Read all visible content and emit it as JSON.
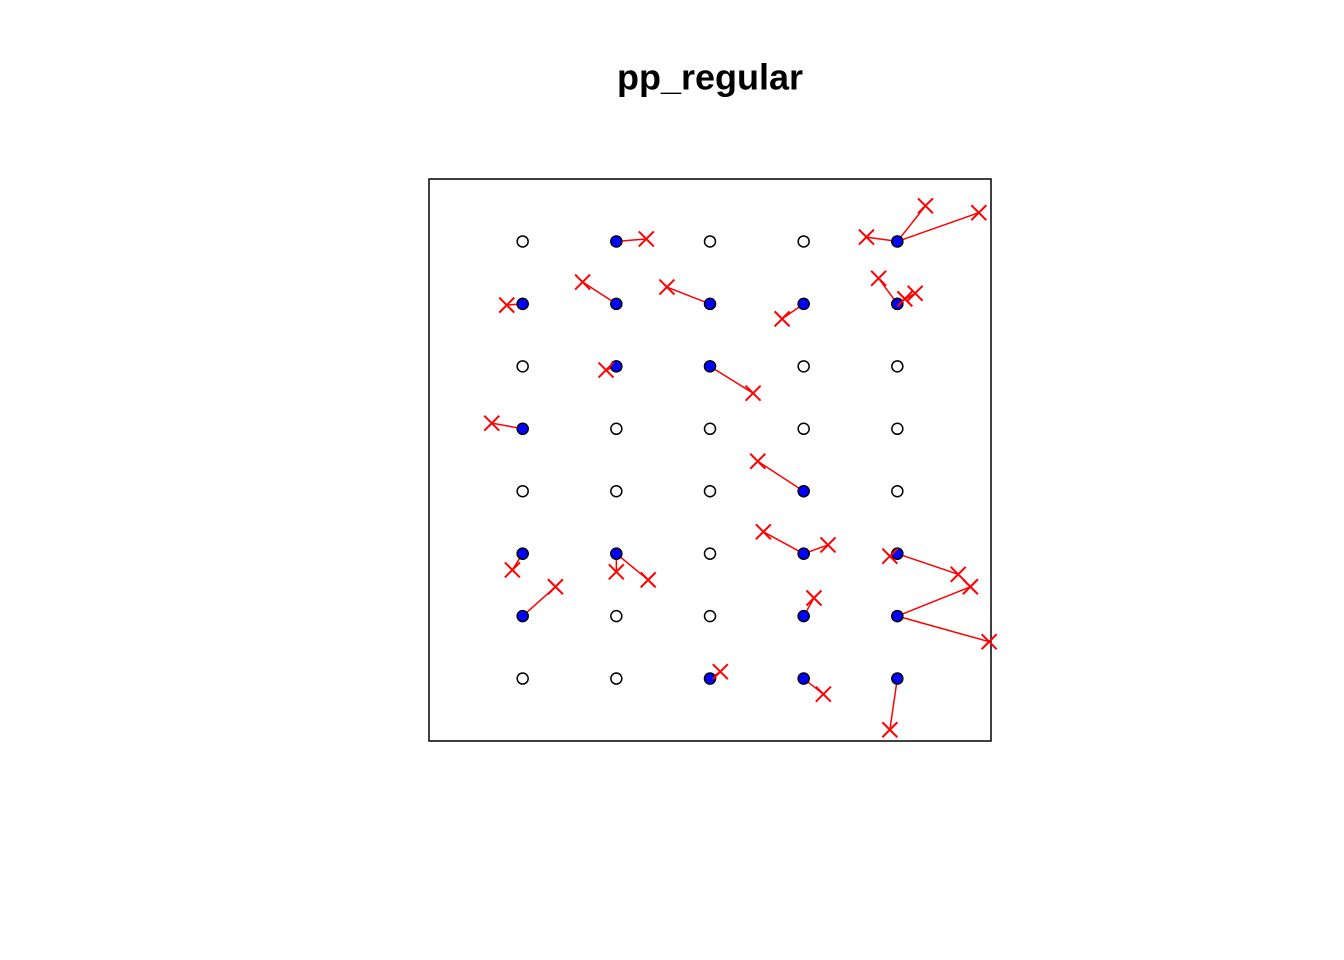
{
  "chart_data": {
    "type": "displacement",
    "title": "pp_regular",
    "xlim": [
      0,
      6
    ],
    "ylim": [
      0,
      9
    ],
    "point_color": "#000000",
    "fill_color": "#0000ff",
    "shift_color": "#ff0000",
    "x": [
      1,
      2,
      3,
      4,
      5,
      1,
      2,
      3,
      4,
      5,
      1,
      2,
      3,
      4,
      5,
      1,
      2,
      3,
      4,
      5,
      1,
      2,
      3,
      4,
      5,
      1,
      2,
      3,
      4,
      5,
      1,
      2,
      3,
      4,
      5,
      1,
      2,
      3,
      4,
      5
    ],
    "y": [
      8,
      8,
      8,
      8,
      8,
      7,
      7,
      7,
      7,
      7,
      6,
      6,
      6,
      6,
      6,
      5,
      5,
      5,
      5,
      5,
      4,
      4,
      4,
      4,
      4,
      3,
      3,
      3,
      3,
      3,
      2,
      2,
      2,
      2,
      2,
      1,
      1,
      1,
      1,
      1
    ],
    "shifts": {
      "x0": [
        2,
        5,
        5,
        5,
        1,
        2,
        3,
        4,
        5,
        5,
        5,
        2,
        3,
        1,
        4,
        1,
        2,
        2,
        4,
        4,
        5,
        5,
        1,
        4,
        5,
        5,
        3,
        4,
        5
      ],
      "y0": [
        8,
        8,
        8,
        8,
        7,
        7,
        7,
        7,
        7,
        7,
        7,
        6,
        6,
        5,
        4,
        3,
        3,
        3,
        3,
        3,
        3,
        3,
        2,
        2,
        2,
        2,
        1,
        1,
        1
      ],
      "x1": [
        2.32,
        4.67,
        5.3,
        5.87,
        0.83,
        1.64,
        2.54,
        3.77,
        4.8,
        5.19,
        5.08,
        1.89,
        3.46,
        0.67,
        3.51,
        0.89,
        2.0,
        2.34,
        3.57,
        4.26,
        4.92,
        5.65,
        1.35,
        4.11,
        5.78,
        5.98,
        3.11,
        4.21,
        4.92
      ],
      "y1": [
        8.04,
        8.07,
        8.57,
        8.46,
        6.98,
        7.35,
        7.27,
        6.76,
        7.41,
        7.17,
        7.08,
        5.94,
        5.57,
        5.09,
        4.48,
        2.74,
        2.71,
        2.58,
        3.35,
        3.14,
        2.96,
        2.67,
        2.47,
        2.29,
        2.47,
        1.59,
        1.11,
        0.75,
        0.18
      ]
    }
  }
}
